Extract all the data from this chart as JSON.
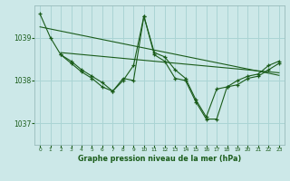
{
  "bg_color": "#cce8e8",
  "grid_color": "#aad4d4",
  "line_color": "#1a5c1a",
  "title": "Graphe pression niveau de la mer (hPa)",
  "ylabel_ticks": [
    1037,
    1038,
    1039
  ],
  "xlim": [
    -0.5,
    23.5
  ],
  "ylim": [
    1036.5,
    1039.75
  ],
  "line1": {
    "x": [
      0,
      1,
      2,
      3,
      4,
      5,
      6,
      7,
      8,
      9,
      10,
      11,
      12,
      13,
      14,
      15,
      16,
      17,
      18,
      19,
      20,
      21,
      22,
      23
    ],
    "y": [
      1039.55,
      1039.0,
      1038.6,
      1038.4,
      1038.2,
      1038.05,
      1037.85,
      1037.75,
      1038.05,
      1038.0,
      1039.5,
      1038.6,
      1038.45,
      1038.05,
      1038.0,
      1037.5,
      1037.1,
      1037.1,
      1037.85,
      1037.9,
      1038.05,
      1038.1,
      1038.25,
      1038.4
    ]
  },
  "line2": {
    "x": [
      2,
      3,
      4,
      5,
      6,
      7,
      8,
      9,
      10,
      11,
      12,
      13,
      14,
      15,
      16,
      17,
      18,
      19,
      20,
      21,
      22,
      23
    ],
    "y": [
      1038.6,
      1038.45,
      1038.25,
      1038.1,
      1037.95,
      1037.75,
      1038.0,
      1038.35,
      1039.5,
      1038.65,
      1038.55,
      1038.25,
      1038.05,
      1037.55,
      1037.15,
      1037.8,
      1037.85,
      1038.0,
      1038.1,
      1038.15,
      1038.35,
      1038.45
    ]
  },
  "line3_straight": {
    "x": [
      0,
      23
    ],
    "y": [
      1039.25,
      1038.12
    ]
  },
  "line4_straight": {
    "x": [
      2,
      23
    ],
    "y": [
      1038.65,
      1038.18
    ]
  }
}
